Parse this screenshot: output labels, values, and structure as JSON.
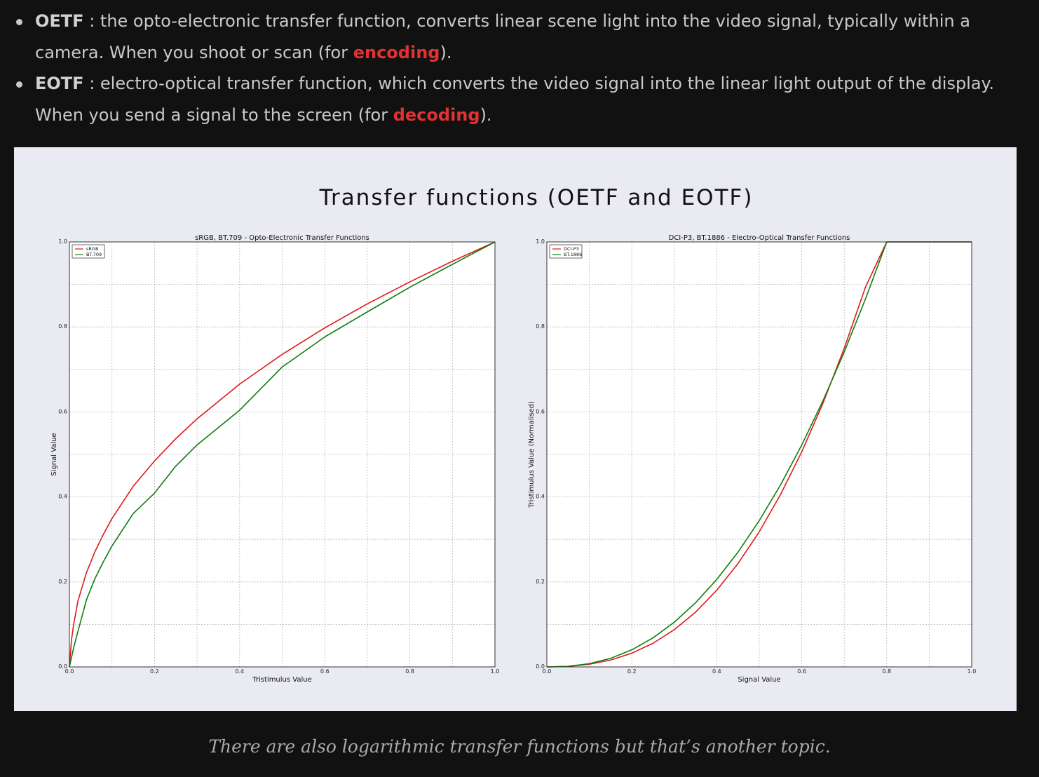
{
  "bullets": [
    {
      "term": "OETF",
      "text_before": " : the opto-electronic transfer function, converts linear scene light into the video signal, typically within a camera. When you shoot or scan (for ",
      "highlight": "encoding",
      "text_after": ")."
    },
    {
      "term": "EOTF",
      "text_before": " : electro-optical transfer function, which converts the video signal into the linear light output of the display. When you send a signal to the screen (for ",
      "highlight": "decoding",
      "text_after": ")."
    }
  ],
  "figure": {
    "title": "Transfer functions (OETF and EOTF)"
  },
  "caption": "There are also logarithmic transfer functions but that’s another topic.",
  "colors": {
    "background": "#111111",
    "figure_background": "#eaeaf2",
    "highlight": "#e03232",
    "series_red": "#e0181b",
    "series_green": "#0e7d0e"
  },
  "chart_data": [
    {
      "type": "line",
      "title": "sRGB, BT.709 - Opto-Electronic Transfer Functions",
      "xlabel": "Tristimulus Value",
      "ylabel": "Signal Value",
      "xlim": [
        0,
        1
      ],
      "ylim": [
        0,
        1
      ],
      "xticks": [
        "0.0",
        "0.2",
        "0.4",
        "0.6",
        "0.8",
        "1.0"
      ],
      "yticks": [
        "0.0",
        "0.2",
        "0.4",
        "0.6",
        "0.8",
        "1.0"
      ],
      "grid": true,
      "legend": "top-left",
      "x": [
        0,
        0.005,
        0.01,
        0.02,
        0.04,
        0.06,
        0.08,
        0.1,
        0.15,
        0.2,
        0.25,
        0.3,
        0.4,
        0.5,
        0.6,
        0.7,
        0.8,
        0.9,
        1.0
      ],
      "series": [
        {
          "name": "sRGB",
          "color": "#e0181b",
          "values": [
            0,
            0.0646,
            0.0998,
            0.155,
            0.2217,
            0.2712,
            0.3122,
            0.3492,
            0.4252,
            0.4845,
            0.5371,
            0.5838,
            0.6654,
            0.7354,
            0.7977,
            0.8543,
            0.906,
            0.9546,
            1.0
          ]
        },
        {
          "name": "BT.709",
          "color": "#0e7d0e",
          "values": [
            0,
            0.0225,
            0.045,
            0.0832,
            0.1577,
            0.2077,
            0.2477,
            0.2846,
            0.3608,
            0.409,
            0.4725,
            0.5223,
            0.604,
            0.7057,
            0.7764,
            0.8354,
            0.8934,
            0.9473,
            1.0
          ]
        }
      ]
    },
    {
      "type": "line",
      "title": "DCI-P3, BT.1886 - Electro-Optical Transfer Functions",
      "xlabel": "Signal Value",
      "ylabel": "Tristimulus Value (Normalised)",
      "xlim": [
        0,
        1
      ],
      "ylim": [
        0,
        1
      ],
      "xticks": [
        "0.0",
        "0.2",
        "0.4",
        "0.6",
        "0.8",
        "1.0"
      ],
      "yticks": [
        "0.0",
        "0.2",
        "0.4",
        "0.6",
        "0.8",
        "1.0"
      ],
      "grid": true,
      "legend": "top-left",
      "x": [
        0,
        0.05,
        0.1,
        0.15,
        0.2,
        0.25,
        0.3,
        0.35,
        0.4,
        0.45,
        0.5,
        0.55,
        0.6,
        0.65,
        0.7,
        0.75,
        0.8,
        0.85,
        0.9,
        0.95,
        1.0
      ],
      "series": [
        {
          "name": "DCI-P3",
          "color": "#e0181b",
          "values": [
            0,
            0.0012,
            0.0062,
            0.0161,
            0.0323,
            0.0557,
            0.0876,
            0.1288,
            0.1804,
            0.2433,
            0.3181,
            0.4055,
            0.5061,
            0.6207,
            0.7497,
            0.8937,
            1.0,
            1.0,
            1.0,
            1.0,
            1.0
          ]
        },
        {
          "name": "BT.1886",
          "color": "#0e7d0e",
          "values": [
            0,
            0.0014,
            0.0076,
            0.0201,
            0.0402,
            0.0684,
            0.1052,
            0.1509,
            0.2058,
            0.2702,
            0.3443,
            0.4282,
            0.5222,
            0.6264,
            0.7409,
            0.8659,
            1.0,
            1.0,
            1.0,
            1.0,
            1.0
          ]
        }
      ]
    }
  ]
}
